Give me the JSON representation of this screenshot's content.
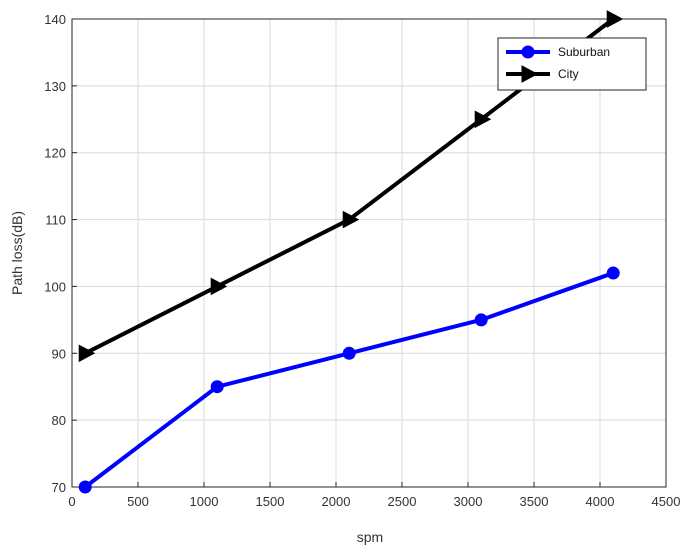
{
  "chart_data": {
    "type": "line",
    "title": "",
    "xlabel": "spm",
    "ylabel": "Path loss(dB)",
    "xlim": [
      0,
      4500
    ],
    "ylim": [
      70,
      140
    ],
    "xticks": [
      0,
      500,
      1000,
      1500,
      2000,
      2500,
      3000,
      3500,
      4000,
      4500
    ],
    "yticks": [
      70,
      80,
      90,
      100,
      110,
      120,
      130,
      140
    ],
    "grid": true,
    "legend_position": "top-right",
    "series": [
      {
        "name": "Suburban",
        "color": "#0000ff",
        "marker": "circle",
        "x": [
          100,
          1100,
          2100,
          3100,
          4100
        ],
        "y": [
          70,
          85,
          90,
          95,
          102
        ]
      },
      {
        "name": "City",
        "color": "#000000",
        "marker": "triangle-right",
        "x": [
          100,
          1100,
          2100,
          3100,
          4100
        ],
        "y": [
          90,
          100,
          110,
          125,
          140
        ]
      }
    ]
  }
}
